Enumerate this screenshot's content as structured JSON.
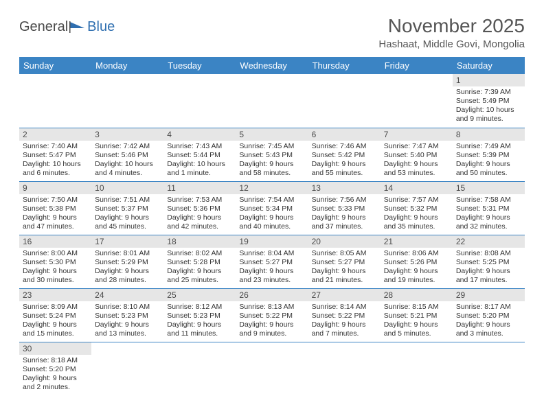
{
  "logo": {
    "text1": "General",
    "text2": "Blue"
  },
  "header": {
    "title": "November 2025",
    "location": "Hashaat, Middle Govi, Mongolia"
  },
  "colors": {
    "header_bg": "#3b84c4",
    "header_text": "#ffffff",
    "daybar_bg": "#e6e6e6",
    "row_border": "#3b84c4",
    "logo_blue": "#2f6fb0",
    "text": "#4a4a4a"
  },
  "daysOfWeek": [
    "Sunday",
    "Monday",
    "Tuesday",
    "Wednesday",
    "Thursday",
    "Friday",
    "Saturday"
  ],
  "weeks": [
    [
      null,
      null,
      null,
      null,
      null,
      null,
      {
        "n": "1",
        "sunrise": "7:39 AM",
        "sunset": "5:49 PM",
        "day": "10 hours and 9 minutes."
      }
    ],
    [
      {
        "n": "2",
        "sunrise": "7:40 AM",
        "sunset": "5:47 PM",
        "day": "10 hours and 6 minutes."
      },
      {
        "n": "3",
        "sunrise": "7:42 AM",
        "sunset": "5:46 PM",
        "day": "10 hours and 4 minutes."
      },
      {
        "n": "4",
        "sunrise": "7:43 AM",
        "sunset": "5:44 PM",
        "day": "10 hours and 1 minute."
      },
      {
        "n": "5",
        "sunrise": "7:45 AM",
        "sunset": "5:43 PM",
        "day": "9 hours and 58 minutes."
      },
      {
        "n": "6",
        "sunrise": "7:46 AM",
        "sunset": "5:42 PM",
        "day": "9 hours and 55 minutes."
      },
      {
        "n": "7",
        "sunrise": "7:47 AM",
        "sunset": "5:40 PM",
        "day": "9 hours and 53 minutes."
      },
      {
        "n": "8",
        "sunrise": "7:49 AM",
        "sunset": "5:39 PM",
        "day": "9 hours and 50 minutes."
      }
    ],
    [
      {
        "n": "9",
        "sunrise": "7:50 AM",
        "sunset": "5:38 PM",
        "day": "9 hours and 47 minutes."
      },
      {
        "n": "10",
        "sunrise": "7:51 AM",
        "sunset": "5:37 PM",
        "day": "9 hours and 45 minutes."
      },
      {
        "n": "11",
        "sunrise": "7:53 AM",
        "sunset": "5:36 PM",
        "day": "9 hours and 42 minutes."
      },
      {
        "n": "12",
        "sunrise": "7:54 AM",
        "sunset": "5:34 PM",
        "day": "9 hours and 40 minutes."
      },
      {
        "n": "13",
        "sunrise": "7:56 AM",
        "sunset": "5:33 PM",
        "day": "9 hours and 37 minutes."
      },
      {
        "n": "14",
        "sunrise": "7:57 AM",
        "sunset": "5:32 PM",
        "day": "9 hours and 35 minutes."
      },
      {
        "n": "15",
        "sunrise": "7:58 AM",
        "sunset": "5:31 PM",
        "day": "9 hours and 32 minutes."
      }
    ],
    [
      {
        "n": "16",
        "sunrise": "8:00 AM",
        "sunset": "5:30 PM",
        "day": "9 hours and 30 minutes."
      },
      {
        "n": "17",
        "sunrise": "8:01 AM",
        "sunset": "5:29 PM",
        "day": "9 hours and 28 minutes."
      },
      {
        "n": "18",
        "sunrise": "8:02 AM",
        "sunset": "5:28 PM",
        "day": "9 hours and 25 minutes."
      },
      {
        "n": "19",
        "sunrise": "8:04 AM",
        "sunset": "5:27 PM",
        "day": "9 hours and 23 minutes."
      },
      {
        "n": "20",
        "sunrise": "8:05 AM",
        "sunset": "5:27 PM",
        "day": "9 hours and 21 minutes."
      },
      {
        "n": "21",
        "sunrise": "8:06 AM",
        "sunset": "5:26 PM",
        "day": "9 hours and 19 minutes."
      },
      {
        "n": "22",
        "sunrise": "8:08 AM",
        "sunset": "5:25 PM",
        "day": "9 hours and 17 minutes."
      }
    ],
    [
      {
        "n": "23",
        "sunrise": "8:09 AM",
        "sunset": "5:24 PM",
        "day": "9 hours and 15 minutes."
      },
      {
        "n": "24",
        "sunrise": "8:10 AM",
        "sunset": "5:23 PM",
        "day": "9 hours and 13 minutes."
      },
      {
        "n": "25",
        "sunrise": "8:12 AM",
        "sunset": "5:23 PM",
        "day": "9 hours and 11 minutes."
      },
      {
        "n": "26",
        "sunrise": "8:13 AM",
        "sunset": "5:22 PM",
        "day": "9 hours and 9 minutes."
      },
      {
        "n": "27",
        "sunrise": "8:14 AM",
        "sunset": "5:22 PM",
        "day": "9 hours and 7 minutes."
      },
      {
        "n": "28",
        "sunrise": "8:15 AM",
        "sunset": "5:21 PM",
        "day": "9 hours and 5 minutes."
      },
      {
        "n": "29",
        "sunrise": "8:17 AM",
        "sunset": "5:20 PM",
        "day": "9 hours and 3 minutes."
      }
    ],
    [
      {
        "n": "30",
        "sunrise": "8:18 AM",
        "sunset": "5:20 PM",
        "day": "9 hours and 2 minutes."
      },
      null,
      null,
      null,
      null,
      null,
      null
    ]
  ],
  "labels": {
    "sunrise": "Sunrise:",
    "sunset": "Sunset:",
    "daylight": "Daylight:"
  }
}
